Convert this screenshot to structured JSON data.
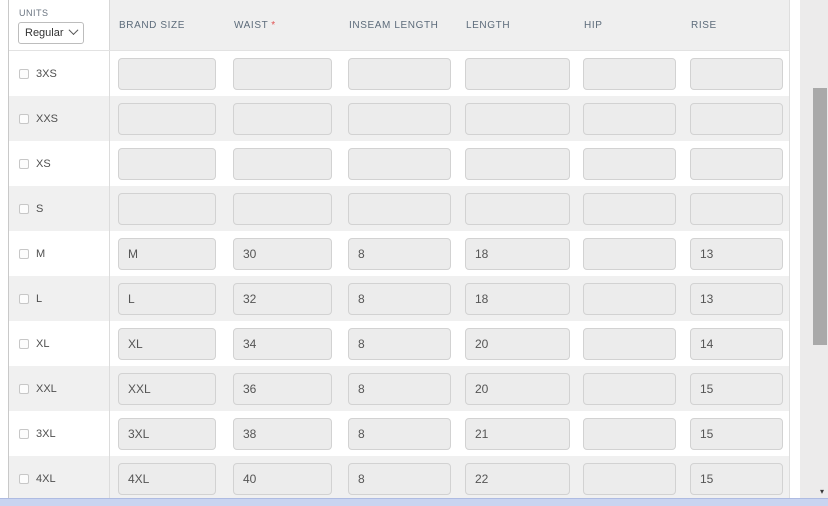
{
  "colors": {
    "accent_blue": "#c9d4f0",
    "required_red": "#e05252",
    "row_stripe": "#f0f0f0",
    "input_fill": "#ececec",
    "scroll_thumb": "#a9a9a9"
  },
  "units": {
    "label": "UNITS",
    "value": "Regular"
  },
  "required_marker": "*",
  "columns": [
    {
      "label": "BRAND SIZE",
      "required": false
    },
    {
      "label": "WAIST",
      "required": true
    },
    {
      "label": "INSEAM LENGTH",
      "required": false
    },
    {
      "label": "LENGTH",
      "required": false
    },
    {
      "label": "HIP",
      "required": false
    },
    {
      "label": "RISE",
      "required": false
    }
  ],
  "rows": [
    {
      "size": "3XS",
      "checked": false,
      "values": [
        "",
        "",
        "",
        "",
        "",
        ""
      ]
    },
    {
      "size": "XXS",
      "checked": false,
      "values": [
        "",
        "",
        "",
        "",
        "",
        ""
      ]
    },
    {
      "size": "XS",
      "checked": false,
      "values": [
        "",
        "",
        "",
        "",
        "",
        ""
      ]
    },
    {
      "size": "S",
      "checked": false,
      "values": [
        "",
        "",
        "",
        "",
        "",
        ""
      ]
    },
    {
      "size": "M",
      "checked": false,
      "values": [
        "M",
        "30",
        "8",
        "18",
        "",
        "13"
      ]
    },
    {
      "size": "L",
      "checked": false,
      "values": [
        "L",
        "32",
        "8",
        "18",
        "",
        "13"
      ]
    },
    {
      "size": "XL",
      "checked": false,
      "values": [
        "XL",
        "34",
        "8",
        "20",
        "",
        "14"
      ]
    },
    {
      "size": "XXL",
      "checked": false,
      "values": [
        "XXL",
        "36",
        "8",
        "20",
        "",
        "15"
      ]
    },
    {
      "size": "3XL",
      "checked": false,
      "values": [
        "3XL",
        "38",
        "8",
        "21",
        "",
        "15"
      ]
    },
    {
      "size": "4XL",
      "checked": false,
      "values": [
        "4XL",
        "40",
        "8",
        "22",
        "",
        "15"
      ]
    }
  ],
  "scrollbar": {
    "down_arrow": "▾"
  }
}
